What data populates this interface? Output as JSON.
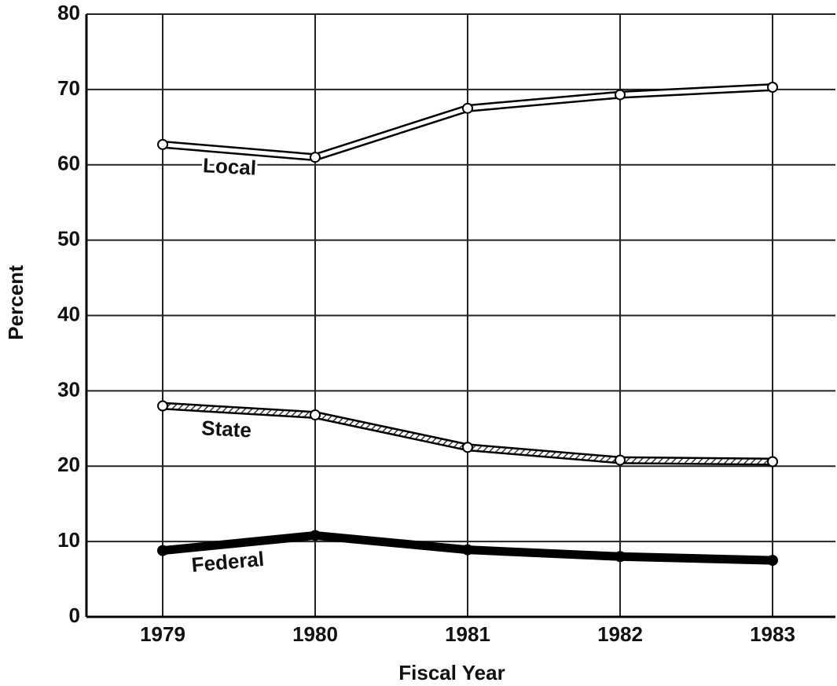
{
  "chart_data": {
    "type": "line",
    "x_label": "Fiscal Year",
    "y_label": "Percent",
    "categories": [
      "1979",
      "1980",
      "1981",
      "1982",
      "1983"
    ],
    "series": [
      {
        "name": "Local",
        "color": "#ffffff",
        "values": [
          62.7,
          61.0,
          67.5,
          69.3,
          70.3
        ]
      },
      {
        "name": "State",
        "color": "#999999",
        "values": [
          28.0,
          26.8,
          22.5,
          20.8,
          20.6
        ]
      },
      {
        "name": "Federal",
        "color": "#000000",
        "values": [
          8.8,
          10.8,
          8.9,
          8.0,
          7.5
        ]
      }
    ],
    "ylim": [
      0,
      80
    ],
    "yticks": [
      0,
      10,
      20,
      30,
      40,
      50,
      60,
      70,
      80
    ],
    "grid": true
  }
}
